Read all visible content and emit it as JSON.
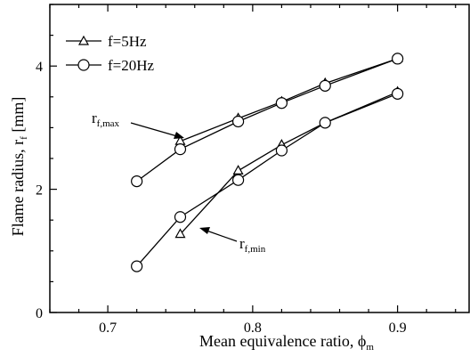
{
  "chart_data": {
    "type": "line",
    "xlabel": "Mean equivalence ratio,  ϕ",
    "xlabel_sub": "m",
    "ylabel": "Flame radius, r",
    "ylabel_sub": "f",
    "ylabel_unit": "[mm]",
    "xlim": [
      0.66,
      0.95
    ],
    "ylim": [
      0,
      5
    ],
    "xticks": [
      0.7,
      0.8,
      0.9
    ],
    "xtick_labels": [
      "0.7",
      "0.8",
      "0.9"
    ],
    "yticks": [
      0,
      2,
      4
    ],
    "ytick_labels": [
      "0",
      "2",
      "4"
    ],
    "grid": false,
    "legend_position": "top-left",
    "legend": [
      {
        "label": "f=5Hz",
        "marker": "triangle"
      },
      {
        "label": "f=20Hz",
        "marker": "circle"
      }
    ],
    "series": [
      {
        "name": "f=5Hz",
        "kind": "r_f,max",
        "marker": "triangle",
        "x": [
          0.75,
          0.79,
          0.82,
          0.85,
          0.9
        ],
        "y": [
          2.78,
          3.15,
          3.42,
          3.72,
          4.12
        ]
      },
      {
        "name": "f=20Hz",
        "kind": "r_f,max",
        "marker": "circle",
        "x": [
          0.72,
          0.75,
          0.79,
          0.82,
          0.85,
          0.9
        ],
        "y": [
          2.13,
          2.65,
          3.1,
          3.4,
          3.68,
          4.12
        ]
      },
      {
        "name": "f=5Hz",
        "kind": "r_f,min",
        "marker": "triangle",
        "x": [
          0.75,
          0.79,
          0.82,
          0.85,
          0.9
        ],
        "y": [
          1.27,
          2.3,
          2.72,
          3.08,
          3.58
        ]
      },
      {
        "name": "f=20Hz",
        "kind": "r_f,min",
        "marker": "circle",
        "x": [
          0.72,
          0.75,
          0.79,
          0.82,
          0.85,
          0.9
        ],
        "y": [
          0.75,
          1.55,
          2.15,
          2.63,
          3.08,
          3.55
        ]
      }
    ],
    "annotations": [
      {
        "main": "r",
        "sub": "f,max"
      },
      {
        "main": "r",
        "sub": "f,min"
      }
    ]
  }
}
